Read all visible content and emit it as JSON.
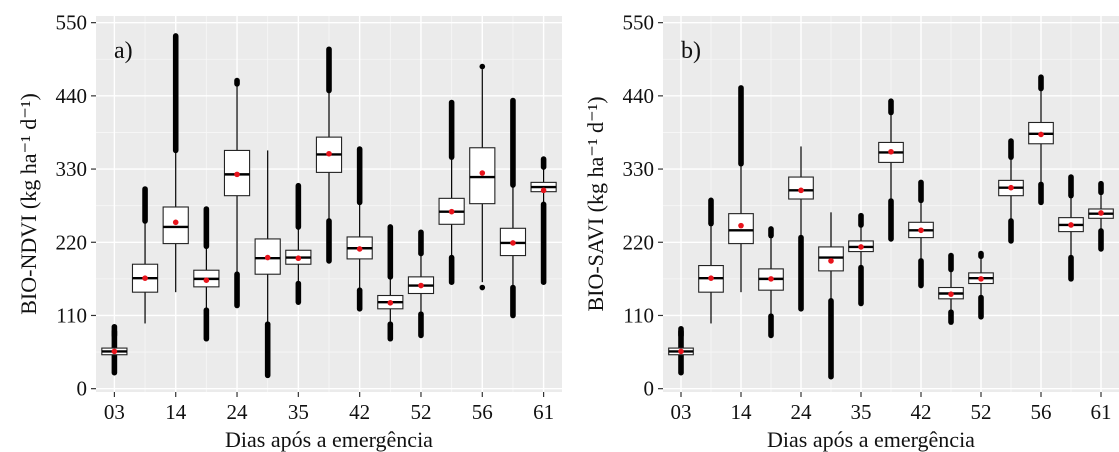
{
  "chart_data": [
    {
      "type": "box",
      "panel_tag": "a)",
      "ylabel": "BIO-NDVI (kg ha⁻¹ d⁻¹)",
      "xlabel": "Dias após a emergência",
      "yticks": [
        0,
        110,
        220,
        330,
        440,
        550
      ],
      "ylim": [
        -5,
        560
      ],
      "x_tick_labels": [
        "03",
        "14",
        "24",
        "35",
        "42",
        "52",
        "56",
        "61"
      ],
      "x_tick_positions": [
        1,
        3,
        5,
        7,
        9,
        11,
        13,
        15
      ],
      "boxes": [
        {
          "x": 1,
          "whisker_low": 35,
          "q1": 51,
          "median": 56,
          "q3": 61,
          "whisker_high": 78,
          "mean": 56,
          "outliers_low": [
            24,
            86
          ],
          "outliers_high": [
            80,
            93
          ]
        },
        {
          "x": 2,
          "whisker_low": 98,
          "q1": 145,
          "median": 166,
          "q3": 187,
          "whisker_high": 250,
          "mean": 166,
          "outliers_low": [],
          "outliers_high": [
            252,
            300
          ]
        },
        {
          "x": 3,
          "whisker_low": 145,
          "q1": 218,
          "median": 243,
          "q3": 273,
          "whisker_high": 355,
          "mean": 250,
          "outliers_low": [],
          "outliers_high": [
            358,
            530
          ]
        },
        {
          "x": 4,
          "whisker_low": 120,
          "q1": 153,
          "median": 165,
          "q3": 178,
          "whisker_high": 212,
          "mean": 163,
          "outliers_low": [
            75,
            118
          ],
          "outliers_high": [
            214,
            270
          ]
        },
        {
          "x": 5,
          "whisker_low": 175,
          "q1": 290,
          "median": 322,
          "q3": 358,
          "whisker_high": 455,
          "mean": 322,
          "outliers_low": [
            125,
            172
          ],
          "outliers_high": [
            458,
            463
          ]
        },
        {
          "x": 6,
          "whisker_low": 100,
          "q1": 172,
          "median": 196,
          "q3": 225,
          "whisker_high": 358,
          "mean": 197,
          "outliers_low": [
            20,
            97
          ],
          "outliers_high": []
        },
        {
          "x": 7,
          "whisker_low": 160,
          "q1": 187,
          "median": 197,
          "q3": 208,
          "whisker_high": 240,
          "mean": 196,
          "outliers_low": [
            130,
            158
          ],
          "outliers_high": [
            243,
            305
          ]
        },
        {
          "x": 8,
          "whisker_low": 255,
          "q1": 325,
          "median": 352,
          "q3": 378,
          "whisker_high": 445,
          "mean": 353,
          "outliers_low": [
            192,
            252
          ],
          "outliers_high": [
            448,
            510
          ]
        },
        {
          "x": 9,
          "whisker_low": 150,
          "q1": 195,
          "median": 211,
          "q3": 228,
          "whisker_high": 278,
          "mean": 210,
          "outliers_low": [
            120,
            148
          ],
          "outliers_high": [
            280,
            360
          ]
        },
        {
          "x": 10,
          "whisker_low": 100,
          "q1": 120,
          "median": 130,
          "q3": 140,
          "whisker_high": 165,
          "mean": 129,
          "outliers_low": [
            75,
            97
          ],
          "outliers_high": [
            168,
            243
          ]
        },
        {
          "x": 11,
          "whisker_low": 115,
          "q1": 143,
          "median": 155,
          "q3": 168,
          "whisker_high": 200,
          "mean": 155,
          "outliers_low": [
            80,
            112
          ],
          "outliers_high": [
            203,
            235
          ]
        },
        {
          "x": 12,
          "whisker_low": 200,
          "q1": 247,
          "median": 266,
          "q3": 286,
          "whisker_high": 345,
          "mean": 266,
          "outliers_low": [
            160,
            197
          ],
          "outliers_high": [
            348,
            430
          ]
        },
        {
          "x": 13,
          "whisker_low": 160,
          "q1": 278,
          "median": 318,
          "q3": 362,
          "whisker_high": 480,
          "mean": 324,
          "outliers_low": [
            152
          ],
          "outliers_high": [
            484
          ]
        },
        {
          "x": 14,
          "whisker_low": 155,
          "q1": 200,
          "median": 219,
          "q3": 241,
          "whisker_high": 303,
          "mean": 219,
          "outliers_low": [
            110,
            152
          ],
          "outliers_high": [
            306,
            433
          ]
        },
        {
          "x": 15,
          "whisker_low": 280,
          "q1": 296,
          "median": 303,
          "q3": 310,
          "whisker_high": 330,
          "mean": 298,
          "outliers_low": [
            160,
            277
          ],
          "outliers_high": [
            333,
            345
          ]
        }
      ]
    },
    {
      "type": "box",
      "panel_tag": "b)",
      "ylabel": "BIO-SAVI (kg ha⁻¹ d⁻¹)",
      "xlabel": "Dias após a emergência",
      "yticks": [
        0,
        110,
        220,
        330,
        440,
        550
      ],
      "ylim": [
        -5,
        560
      ],
      "x_tick_labels": [
        "03",
        "14",
        "24",
        "35",
        "42",
        "52",
        "56",
        "61"
      ],
      "x_tick_positions": [
        1,
        3,
        5,
        7,
        9,
        11,
        13,
        15
      ],
      "boxes": [
        {
          "x": 1,
          "whisker_low": 35,
          "q1": 51,
          "median": 56,
          "q3": 61,
          "whisker_high": 78,
          "mean": 56,
          "outliers_low": [
            24,
            86
          ],
          "outliers_high": [
            80,
            90
          ]
        },
        {
          "x": 2,
          "whisker_low": 98,
          "q1": 145,
          "median": 166,
          "q3": 185,
          "whisker_high": 245,
          "mean": 166,
          "outliers_low": [],
          "outliers_high": [
            248,
            283
          ]
        },
        {
          "x": 3,
          "whisker_low": 145,
          "q1": 218,
          "median": 238,
          "q3": 263,
          "whisker_high": 335,
          "mean": 245,
          "outliers_low": [],
          "outliers_high": [
            338,
            452
          ]
        },
        {
          "x": 4,
          "whisker_low": 112,
          "q1": 148,
          "median": 165,
          "q3": 180,
          "whisker_high": 228,
          "mean": 165,
          "outliers_low": [
            80,
            109
          ],
          "outliers_high": [
            230,
            240
          ]
        },
        {
          "x": 5,
          "whisker_low": 230,
          "q1": 285,
          "median": 298,
          "q3": 318,
          "whisker_high": 364,
          "mean": 298,
          "outliers_low": [
            120,
            227
          ],
          "outliers_high": []
        },
        {
          "x": 6,
          "whisker_low": 135,
          "q1": 177,
          "median": 197,
          "q3": 213,
          "whisker_high": 265,
          "mean": 192,
          "outliers_low": [
            18,
            132
          ],
          "outliers_high": []
        },
        {
          "x": 7,
          "whisker_low": 185,
          "q1": 206,
          "median": 213,
          "q3": 222,
          "whisker_high": 243,
          "mean": 213,
          "outliers_low": [
            128,
            182
          ],
          "outliers_high": [
            246,
            260
          ]
        },
        {
          "x": 8,
          "whisker_low": 285,
          "q1": 340,
          "median": 355,
          "q3": 370,
          "whisker_high": 412,
          "mean": 356,
          "outliers_low": [
            225,
            282
          ],
          "outliers_high": [
            415,
            432
          ]
        },
        {
          "x": 9,
          "whisker_low": 195,
          "q1": 227,
          "median": 238,
          "q3": 250,
          "whisker_high": 280,
          "mean": 238,
          "outliers_low": [
            155,
            192
          ],
          "outliers_high": [
            283,
            310
          ]
        },
        {
          "x": 10,
          "whisker_low": 118,
          "q1": 135,
          "median": 143,
          "q3": 152,
          "whisker_high": 176,
          "mean": 142,
          "outliers_low": [
            100,
            115
          ],
          "outliers_high": [
            179,
            200
          ]
        },
        {
          "x": 11,
          "whisker_low": 140,
          "q1": 158,
          "median": 166,
          "q3": 174,
          "whisker_high": 196,
          "mean": 165,
          "outliers_low": [
            108,
            137
          ],
          "outliers_high": [
            199,
            203
          ]
        },
        {
          "x": 12,
          "whisker_low": 255,
          "q1": 290,
          "median": 302,
          "q3": 313,
          "whisker_high": 345,
          "mean": 302,
          "outliers_low": [
            222,
            252
          ],
          "outliers_high": [
            348,
            372
          ]
        },
        {
          "x": 13,
          "whisker_low": 310,
          "q1": 368,
          "median": 383,
          "q3": 400,
          "whisker_high": 448,
          "mean": 382,
          "outliers_low": [
            280,
            307
          ],
          "outliers_high": [
            451,
            468
          ]
        },
        {
          "x": 14,
          "whisker_low": 200,
          "q1": 236,
          "median": 246,
          "q3": 257,
          "whisker_high": 287,
          "mean": 246,
          "outliers_low": [
            165,
            197
          ],
          "outliers_high": [
            290,
            318
          ]
        },
        {
          "x": 15,
          "whisker_low": 240,
          "q1": 256,
          "median": 263,
          "q3": 270,
          "whisker_high": 292,
          "mean": 264,
          "outliers_low": [
            210,
            237
          ],
          "outliers_high": [
            295,
            308
          ]
        }
      ]
    }
  ]
}
